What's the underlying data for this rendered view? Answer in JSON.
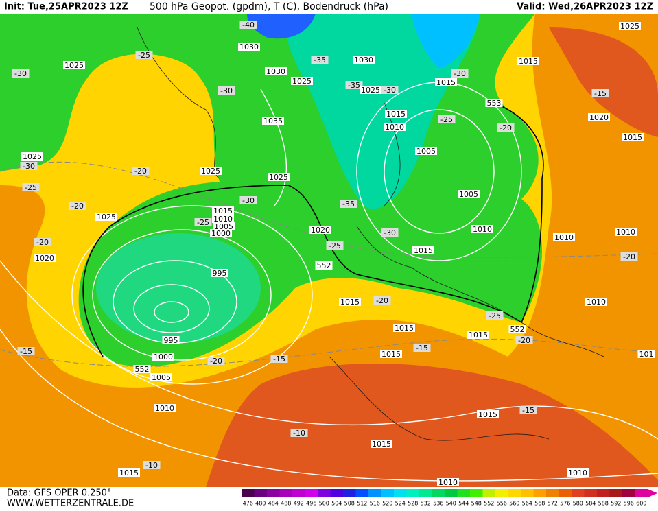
{
  "header": {
    "init": "Init: Tue,25APR2023 12Z",
    "title": "500 hPa Geopot. (gpdm), T (C), Bodendruck (hPa)",
    "valid": "Valid: Wed,26APR2023 12Z"
  },
  "map": {
    "labels": [
      "-40",
      "1030",
      "1030",
      "1025",
      "-35",
      "1030",
      "-35",
      "1025",
      "-30",
      "-30",
      "1015",
      "1015",
      "1025",
      "-15",
      "1020",
      "1015",
      "553",
      "-25",
      "1015",
      "1010",
      "-20",
      "1005",
      "1005",
      "1010",
      "1010",
      "1010",
      "-20",
      "1010",
      "1015",
      "-30",
      "-35",
      "1020",
      "-25",
      "552",
      "1025",
      "1035",
      "-30",
      "1025",
      "-30",
      "-25",
      "1025",
      "-30",
      "-20",
      "1025",
      "-25",
      "-20",
      "1025",
      "-30",
      "1015",
      "1010",
      "-25",
      "1005",
      "1000",
      "-20",
      "1020",
      "995",
      "1015",
      "-20",
      "-25",
      "1015",
      "552",
      "-20",
      "1015",
      "995",
      "1000",
      "-15",
      "552",
      "-20",
      "-15",
      "1005",
      "1015",
      "-15",
      "101",
      "1010",
      "1015",
      "-15",
      "-10",
      "1015",
      "-10",
      "1015",
      "1010",
      "1010"
    ]
  },
  "footer": {
    "data_source": "Data: GFS OPER 0.250°",
    "website": "WWW.WETTERZENTRALE.DE"
  },
  "color_scale": {
    "levels": [
      476,
      480,
      484,
      488,
      492,
      496,
      500,
      504,
      508,
      512,
      516,
      520,
      524,
      528,
      532,
      536,
      540,
      544,
      548,
      552,
      556,
      560,
      564,
      568,
      572,
      576,
      580,
      584,
      588,
      592,
      596,
      600
    ],
    "colors": [
      "#4b0050",
      "#6a0080",
      "#8b00a0",
      "#a800b8",
      "#c000d0",
      "#d000e8",
      "#8000e0",
      "#5000e0",
      "#2020e0",
      "#0050ff",
      "#0090ff",
      "#00c0ff",
      "#00e0f0",
      "#00f0c0",
      "#00e890",
      "#00d860",
      "#00c840",
      "#20e020",
      "#40f000",
      "#c0f000",
      "#f0f000",
      "#ffd800",
      "#ffc000",
      "#ffa000",
      "#f08000",
      "#e86000",
      "#e04020",
      "#d03020",
      "#c02020",
      "#a81818",
      "#a00040",
      "#e000a0"
    ]
  }
}
